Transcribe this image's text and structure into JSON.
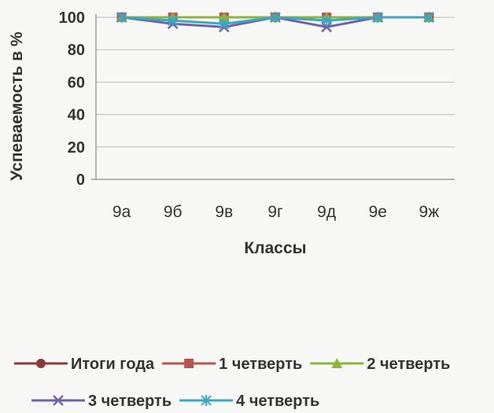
{
  "chart_data": {
    "type": "line",
    "categories": [
      "9а",
      "9б",
      "9в",
      "9г",
      "9д",
      "9е",
      "9ж"
    ],
    "series": [
      {
        "name": "Итоги года",
        "marker": "circle",
        "color": "#8b3a3a",
        "values": [
          100,
          100,
          100,
          100,
          100,
          100,
          100
        ]
      },
      {
        "name": "1 четверть",
        "marker": "square",
        "color": "#b85450",
        "values": [
          100,
          100,
          100,
          100,
          100,
          100,
          100
        ]
      },
      {
        "name": "2 четверть",
        "marker": "triangle",
        "color": "#8cb63c",
        "values": [
          100,
          100,
          100,
          100,
          100,
          100,
          100
        ]
      },
      {
        "name": "3 четверть",
        "marker": "x",
        "color": "#7062a8",
        "values": [
          100,
          96,
          94,
          100,
          94,
          100,
          100
        ]
      },
      {
        "name": "4 четверть",
        "marker": "star",
        "color": "#3fa6c1",
        "values": [
          100,
          98,
          96,
          100,
          98,
          100,
          100
        ]
      }
    ],
    "yticks": [
      "0",
      "20",
      "40",
      "60",
      "80",
      "100"
    ],
    "ylim": [
      0,
      100
    ],
    "ylabel": "Успеваемость в %",
    "xlabel": "Классы",
    "grid": true,
    "legend_position": "bottom"
  }
}
